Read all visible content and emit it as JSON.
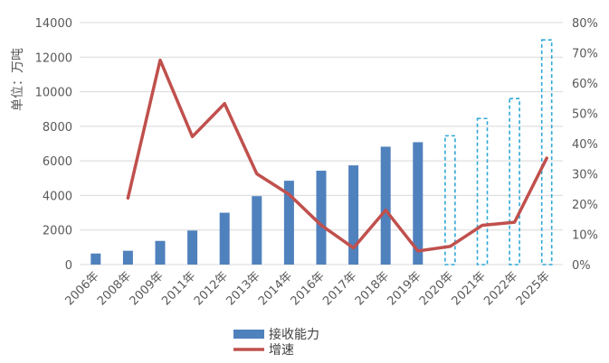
{
  "chart_data": {
    "type": "bar+line",
    "categories": [
      "2006年",
      "2008年",
      "2009年",
      "2011年",
      "2012年",
      "2013年",
      "2014年",
      "2016年",
      "2017年",
      "2018年",
      "2019年",
      "2020年",
      "2021年",
      "2022年",
      "2025年"
    ],
    "ylabel": "单位：万吨",
    "ylim": [
      0,
      14000
    ],
    "y2lim": [
      0,
      0.8
    ],
    "yticks": [
      "0",
      "2000",
      "4000",
      "6000",
      "8000",
      "10000",
      "12000",
      "14000"
    ],
    "y2ticks": [
      "0%",
      "10%",
      "20%",
      "30%",
      "40%",
      "50%",
      "60%",
      "70%",
      "80%"
    ],
    "series": [
      {
        "name": "接收能力",
        "type": "bar",
        "axis": "left",
        "color": "#4f81bd",
        "values": [
          640,
          800,
          1370,
          1970,
          3000,
          3960,
          4850,
          5430,
          5740,
          6820,
          7080,
          7450,
          8450,
          9600,
          13000
        ],
        "projected_from_index": 11,
        "projected_style": "dashed outline",
        "projected_color": "#2fa8d6"
      },
      {
        "name": "增速",
        "type": "line",
        "axis": "right",
        "color": "#c0504d",
        "values": [
          null,
          0.22,
          0.676,
          0.423,
          0.532,
          0.3,
          0.232,
          0.13,
          0.055,
          0.18,
          0.045,
          0.06,
          0.13,
          0.14,
          0.352
        ]
      }
    ],
    "legend": [
      "接收能力",
      "增速"
    ]
  }
}
